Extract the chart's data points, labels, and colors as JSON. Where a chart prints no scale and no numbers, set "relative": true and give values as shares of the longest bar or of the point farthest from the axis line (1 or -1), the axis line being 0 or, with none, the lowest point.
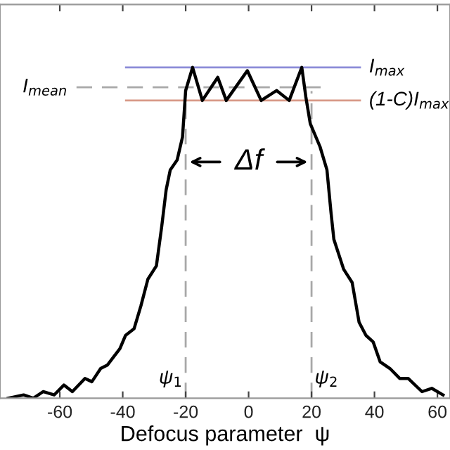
{
  "chart_data": {
    "type": "line",
    "relative": true,
    "xlabel": "Defocus parameter  ψ",
    "xlim": [
      -79,
      64
    ],
    "xticks": [
      -60,
      -40,
      -20,
      0,
      20,
      40,
      60
    ],
    "series": [
      {
        "color": "#000000",
        "x": [
          -76.4,
          -71.5,
          -68.4,
          -65.3,
          -61.8,
          -58.7,
          -56,
          -52,
          -49.8,
          -47,
          -44.9,
          -40.9,
          -39.1,
          -36.4,
          -34.2,
          -32,
          -29.3,
          -27.6,
          -26.2,
          -24.9,
          -22.7,
          -21,
          -20,
          -17.8,
          -14.7,
          -9.8,
          -7.1,
          -0.4,
          4,
          8.9,
          12.9,
          16.9,
          18.2,
          19.6,
          22.7,
          24.9,
          26.2,
          27.1,
          30.2,
          32.9,
          35.1,
          37.3,
          39.6,
          41.8,
          44.9,
          48,
          50.7,
          55.1,
          58.2,
          61.8
        ],
        "values": [
          0,
          0.01,
          0,
          0.02,
          0.01,
          0.04,
          0.02,
          0.06,
          0.05,
          0.09,
          0.1,
          0.15,
          0.19,
          0.21,
          0.28,
          0.36,
          0.4,
          0.52,
          0.63,
          0.69,
          0.72,
          0.79,
          0.93,
          1.0,
          0.9,
          0.97,
          0.9,
          0.99,
          0.9,
          0.93,
          0.9,
          1.0,
          0.91,
          0.83,
          0.76,
          0.69,
          0.56,
          0.48,
          0.39,
          0.35,
          0.23,
          0.19,
          0.17,
          0.11,
          0.09,
          0.06,
          0.06,
          0.02,
          0.03,
          0.01
        ]
      }
    ],
    "ref_lines": [
      {
        "axis": "y",
        "value": 1.0,
        "label": "I$_{max}$",
        "color": "#8c8cd8",
        "line_style": "solid"
      },
      {
        "axis": "y",
        "value": 0.94,
        "label": "I$_{mean}$",
        "color": "#a8a8a8",
        "line_style": "dashed"
      },
      {
        "axis": "y",
        "value": 0.9,
        "label": "(1-C)I$_{max}$",
        "color": "#d89a88",
        "line_style": "solid"
      },
      {
        "axis": "x",
        "value": -20,
        "label": "ψ$_{1}$",
        "color": "#a8a8a8",
        "line_style": "dashed"
      },
      {
        "axis": "x",
        "value": 20,
        "label": "ψ$_{2}$",
        "color": "#a8a8a8",
        "line_style": "dashed"
      }
    ],
    "annotations": [
      "Δf"
    ],
    "grid": false,
    "tick_labels": "x"
  }
}
